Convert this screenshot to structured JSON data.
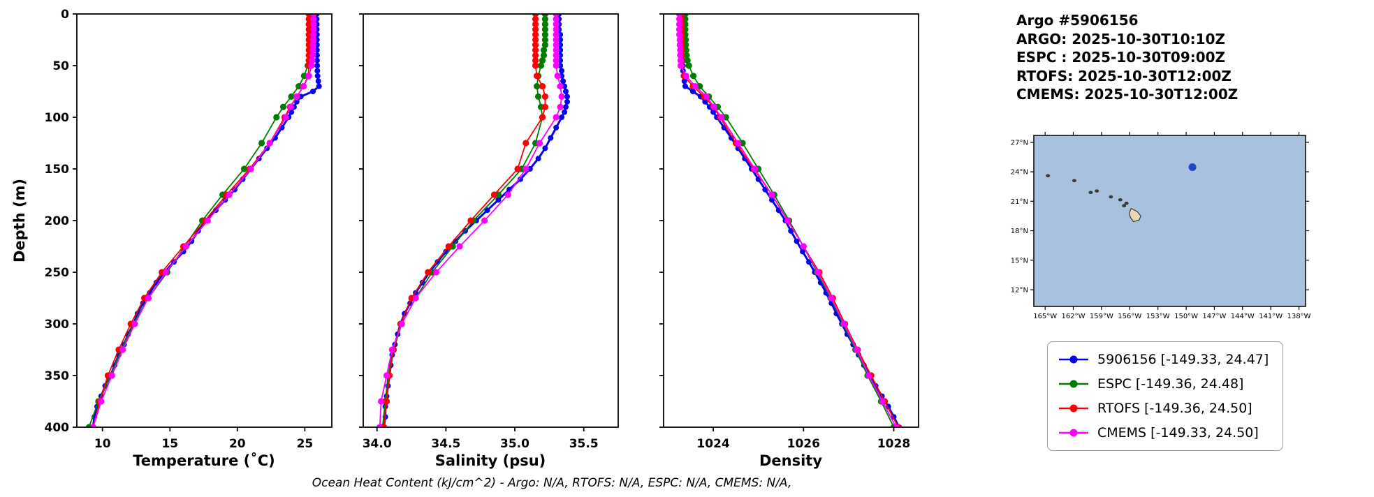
{
  "header": {
    "title": "Argo #5906156",
    "lines": [
      "ARGO: 2025-10-30T10:10Z",
      "ESPC : 2025-10-30T09:00Z",
      "RTOFS: 2025-10-30T12:00Z",
      "CMEMS: 2025-10-30T12:00Z"
    ]
  },
  "footer": "Ocean Heat Content (kJ/cm^2) - Argo: N/A,  RTOFS: N/A,  ESPC: N/A,  CMEMS: N/A,",
  "legend": {
    "items": [
      {
        "key": "argo",
        "label": "5906156 [-149.33, 24.47]",
        "color": "#0000ee"
      },
      {
        "key": "espc",
        "label": "ESPC [-149.36, 24.48]",
        "color": "#007d00"
      },
      {
        "key": "rtofs",
        "label": "RTOFS [-149.36, 24.50]",
        "color": "#ff0000"
      },
      {
        "key": "cmems",
        "label": "CMEMS [-149.33, 24.50]",
        "color": "#ff00ff"
      }
    ]
  },
  "map": {
    "ocean_color": "#a7c1de",
    "land_color": "#e8d8b4",
    "land_edge": "#3a3a3a",
    "extent": {
      "lon": [
        -166.2,
        -137.3
      ],
      "lat": [
        10.3,
        27.7
      ]
    },
    "lat_ticks": [
      27,
      24,
      21,
      18,
      15,
      12
    ],
    "lat_labels": [
      "27°N",
      "24°N",
      "21°N",
      "18°N",
      "15°N",
      "12°N"
    ],
    "lon_ticks": [
      -165,
      -162,
      -159,
      -156,
      -153,
      -150,
      -147,
      -144,
      -141,
      -138
    ],
    "lon_labels": [
      "165°W",
      "162°W",
      "159°W",
      "156°W",
      "153°W",
      "150°W",
      "147°W",
      "144°W",
      "141°W",
      "138°W"
    ],
    "float_marker": {
      "lon": -149.33,
      "lat": 24.47,
      "color": "#2244cc"
    },
    "islands": {
      "dots": [
        [
          -164.7,
          23.6
        ],
        [
          -161.9,
          23.1
        ],
        [
          -160.15,
          21.9
        ],
        [
          -159.5,
          22.05
        ],
        [
          -158.0,
          21.45
        ],
        [
          -157.0,
          21.15
        ],
        [
          -156.35,
          20.8
        ],
        [
          -156.6,
          20.55
        ]
      ],
      "big_island": [
        [
          -155.85,
          20.27
        ],
        [
          -155.2,
          19.95
        ],
        [
          -154.82,
          19.5
        ],
        [
          -155.0,
          19.1
        ],
        [
          -155.6,
          18.92
        ],
        [
          -155.92,
          19.35
        ],
        [
          -156.06,
          19.78
        ]
      ]
    }
  },
  "chart_data": {
    "type": "line",
    "orientation": "vertical-profile",
    "ylabel": "Depth (m)",
    "ylim": [
      0,
      400
    ],
    "y_inverted": true,
    "yticks": [
      0,
      50,
      100,
      150,
      200,
      250,
      300,
      350,
      400
    ],
    "grid": false,
    "series_meta": [
      {
        "name": "5906156",
        "color": "#0000ee",
        "marker_r": 4.0,
        "line_w": 3.0
      },
      {
        "name": "ESPC",
        "color": "#007d00",
        "marker_r": 4.6,
        "line_w": 1.8
      },
      {
        "name": "RTOFS",
        "color": "#ff0000",
        "marker_r": 4.6,
        "line_w": 1.8
      },
      {
        "name": "CMEMS",
        "color": "#ff00ff",
        "marker_r": 4.6,
        "line_w": 1.8
      }
    ],
    "argo_depths": [
      0,
      5,
      10,
      15,
      20,
      25,
      30,
      35,
      40,
      45,
      50,
      55,
      60,
      65,
      70,
      75,
      80,
      85,
      90,
      95,
      100,
      110,
      120,
      130,
      140,
      150,
      160,
      170,
      180,
      190,
      200,
      210,
      220,
      230,
      240,
      250,
      260,
      270,
      280,
      290,
      300,
      310,
      320,
      330,
      340,
      350,
      360,
      370,
      380,
      390,
      400
    ],
    "model_depths": [
      0,
      5,
      10,
      15,
      20,
      25,
      30,
      35,
      40,
      45,
      50,
      60,
      70,
      80,
      90,
      100,
      125,
      150,
      175,
      200,
      225,
      250,
      275,
      300,
      325,
      350,
      375,
      400
    ],
    "charts": [
      {
        "xlabel": "Temperature (˚C)",
        "xlim": [
          8.1,
          27.0
        ],
        "xticks": [
          10,
          15,
          20,
          25
        ],
        "xtick_labels": [
          "10",
          "15",
          "20",
          "25"
        ],
        "series": [
          {
            "name": "5906156",
            "depths": "argo",
            "values": [
              25.88,
              25.88,
              25.89,
              25.89,
              25.9,
              25.9,
              25.9,
              25.9,
              25.91,
              25.91,
              25.92,
              25.93,
              25.95,
              26.0,
              26.05,
              25.6,
              24.7,
              24.4,
              24.2,
              24.0,
              23.8,
              23.3,
              22.8,
              22.2,
              21.6,
              21.0,
              20.4,
              19.8,
              19.1,
              18.4,
              17.7,
              17.1,
              16.6,
              16.0,
              15.3,
              14.6,
              14.0,
              13.5,
              13.0,
              12.6,
              12.3,
              11.9,
              11.6,
              11.2,
              10.9,
              10.6,
              10.2,
              9.9,
              9.6,
              9.4,
              9.3
            ]
          },
          {
            "name": "ESPC",
            "depths": "model",
            "values": [
              25.45,
              25.45,
              25.44,
              25.43,
              25.42,
              25.41,
              25.4,
              25.38,
              25.35,
              25.3,
              25.22,
              24.95,
              24.55,
              24.0,
              23.4,
              22.9,
              21.8,
              20.5,
              18.9,
              17.4,
              16.1,
              14.8,
              13.4,
              12.3,
              11.4,
              10.6,
              9.7,
              9.0
            ]
          },
          {
            "name": "RTOFS",
            "depths": "model",
            "values": [
              25.3,
              25.3,
              25.3,
              25.3,
              25.3,
              25.3,
              25.3,
              25.3,
              25.3,
              25.3,
              25.3,
              25.25,
              24.9,
              24.4,
              23.9,
              23.5,
              22.4,
              20.9,
              19.2,
              17.6,
              16.0,
              14.4,
              13.1,
              12.1,
              11.2,
              10.4,
              9.8,
              9.3
            ]
          },
          {
            "name": "CMEMS",
            "depths": "model",
            "values": [
              25.65,
              25.65,
              25.65,
              25.65,
              25.64,
              25.63,
              25.62,
              25.6,
              25.58,
              25.55,
              25.5,
              25.3,
              24.9,
              24.4,
              23.95,
              23.6,
              22.4,
              21.0,
              19.4,
              17.8,
              16.2,
              14.7,
              13.4,
              12.4,
              11.5,
              10.7,
              9.9,
              9.3
            ]
          }
        ]
      },
      {
        "xlabel": "Salinity (psu)",
        "xlim": [
          33.9,
          35.75
        ],
        "xticks": [
          34.0,
          34.5,
          35.0,
          35.5
        ],
        "xtick_labels": [
          "34.0",
          "34.5",
          "35.0",
          "35.5"
        ],
        "series": [
          {
            "name": "5906156",
            "depths": "argo",
            "values": [
              35.32,
              35.32,
              35.32,
              35.32,
              35.33,
              35.33,
              35.33,
              35.33,
              35.33,
              35.33,
              35.33,
              35.34,
              35.34,
              35.35,
              35.36,
              35.37,
              35.38,
              35.38,
              35.37,
              35.36,
              35.34,
              35.3,
              35.26,
              35.22,
              35.17,
              35.11,
              35.04,
              34.96,
              34.88,
              34.8,
              34.72,
              34.64,
              34.57,
              34.5,
              34.44,
              34.38,
              34.33,
              34.28,
              34.24,
              34.2,
              34.17,
              34.15,
              34.13,
              34.11,
              34.1,
              34.09,
              34.08,
              34.07,
              34.06,
              34.06,
              34.05
            ]
          },
          {
            "name": "ESPC",
            "depths": "model",
            "values": [
              35.22,
              35.22,
              35.22,
              35.22,
              35.22,
              35.22,
              35.22,
              35.21,
              35.21,
              35.2,
              35.19,
              35.17,
              35.16,
              35.17,
              35.19,
              35.2,
              35.15,
              35.05,
              34.88,
              34.7,
              34.55,
              34.4,
              34.28,
              34.18,
              34.12,
              34.08,
              34.06,
              34.04
            ]
          },
          {
            "name": "RTOFS",
            "depths": "model",
            "values": [
              35.15,
              35.15,
              35.15,
              35.15,
              35.15,
              35.15,
              35.15,
              35.15,
              35.15,
              35.15,
              35.15,
              35.16,
              35.2,
              35.22,
              35.22,
              35.2,
              35.08,
              35.02,
              34.85,
              34.68,
              34.52,
              34.37,
              34.25,
              34.17,
              34.12,
              34.09,
              34.07,
              34.05
            ]
          },
          {
            "name": "CMEMS",
            "depths": "model",
            "values": [
              35.3,
              35.3,
              35.3,
              35.3,
              35.3,
              35.3,
              35.3,
              35.3,
              35.3,
              35.3,
              35.3,
              35.31,
              35.33,
              35.34,
              35.33,
              35.3,
              35.18,
              35.08,
              34.95,
              34.78,
              34.6,
              34.43,
              34.28,
              34.18,
              34.11,
              34.07,
              34.03,
              34.02
            ]
          }
        ]
      },
      {
        "xlabel": "Density",
        "xlim": [
          1022.9,
          1028.55
        ],
        "xticks": [
          1024,
          1026,
          1028
        ],
        "xtick_labels": [
          "1024",
          "1026",
          "1028"
        ],
        "series": [
          {
            "name": "5906156",
            "depths": "argo",
            "values": [
              1023.31,
              1023.31,
              1023.31,
              1023.31,
              1023.32,
              1023.32,
              1023.32,
              1023.32,
              1023.32,
              1023.33,
              1023.33,
              1023.33,
              1023.34,
              1023.36,
              1023.38,
              1023.55,
              1023.72,
              1023.82,
              1023.92,
              1024.0,
              1024.08,
              1024.24,
              1024.4,
              1024.55,
              1024.7,
              1024.85,
              1025.0,
              1025.15,
              1025.3,
              1025.45,
              1025.6,
              1025.72,
              1025.85,
              1025.98,
              1026.12,
              1026.25,
              1026.38,
              1026.5,
              1026.62,
              1026.73,
              1026.85,
              1026.97,
              1027.1,
              1027.22,
              1027.34,
              1027.46,
              1027.6,
              1027.74,
              1027.88,
              1028.0,
              1028.12
            ]
          },
          {
            "name": "ESPC",
            "depths": "model",
            "values": [
              1023.38,
              1023.38,
              1023.38,
              1023.38,
              1023.38,
              1023.39,
              1023.39,
              1023.4,
              1023.41,
              1023.43,
              1023.46,
              1023.56,
              1023.7,
              1023.9,
              1024.1,
              1024.28,
              1024.65,
              1025.0,
              1025.35,
              1025.68,
              1026.0,
              1026.3,
              1026.6,
              1026.88,
              1027.15,
              1027.42,
              1027.72,
              1028.0
            ]
          },
          {
            "name": "RTOFS",
            "depths": "model",
            "values": [
              1023.3,
              1023.3,
              1023.3,
              1023.3,
              1023.3,
              1023.3,
              1023.3,
              1023.3,
              1023.3,
              1023.3,
              1023.3,
              1023.35,
              1023.55,
              1023.8,
              1024.0,
              1024.15,
              1024.5,
              1024.9,
              1025.3,
              1025.65,
              1026.0,
              1026.35,
              1026.65,
              1026.92,
              1027.2,
              1027.5,
              1027.8,
              1028.1
            ]
          },
          {
            "name": "CMEMS",
            "depths": "model",
            "values": [
              1023.25,
              1023.25,
              1023.25,
              1023.25,
              1023.25,
              1023.26,
              1023.26,
              1023.27,
              1023.27,
              1023.28,
              1023.28,
              1023.4,
              1023.6,
              1023.85,
              1024.02,
              1024.18,
              1024.55,
              1024.92,
              1025.3,
              1025.65,
              1026.0,
              1026.32,
              1026.62,
              1026.9,
              1027.18,
              1027.45,
              1027.75,
              1028.05
            ]
          }
        ]
      }
    ]
  }
}
